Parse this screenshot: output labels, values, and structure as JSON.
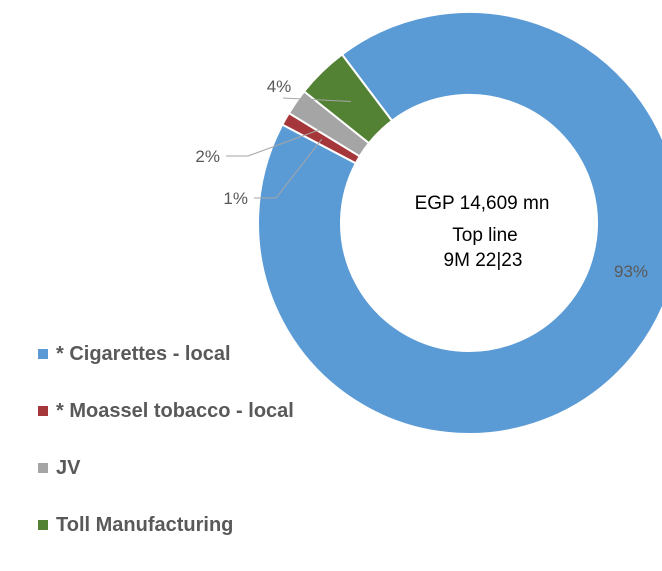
{
  "chart_data": {
    "type": "pie",
    "variant": "donut",
    "center_text": [
      "EGP 14,609 mn",
      "Top line",
      "9M 22|23"
    ],
    "slices": [
      {
        "name": "* Cigarettes - local",
        "value": 93,
        "label": "93%",
        "color": "#5B9BD5"
      },
      {
        "name": "* Moassel tobacco - local",
        "value": 1,
        "label": "1%",
        "color": "#A5373A"
      },
      {
        "name": "JV",
        "value": 2,
        "label": "2%",
        "color": "#A5A5A5"
      },
      {
        "name": "Toll Manufacturing",
        "value": 4,
        "label": "4%",
        "color": "#548235"
      }
    ],
    "legend_position": "bottom-left"
  }
}
